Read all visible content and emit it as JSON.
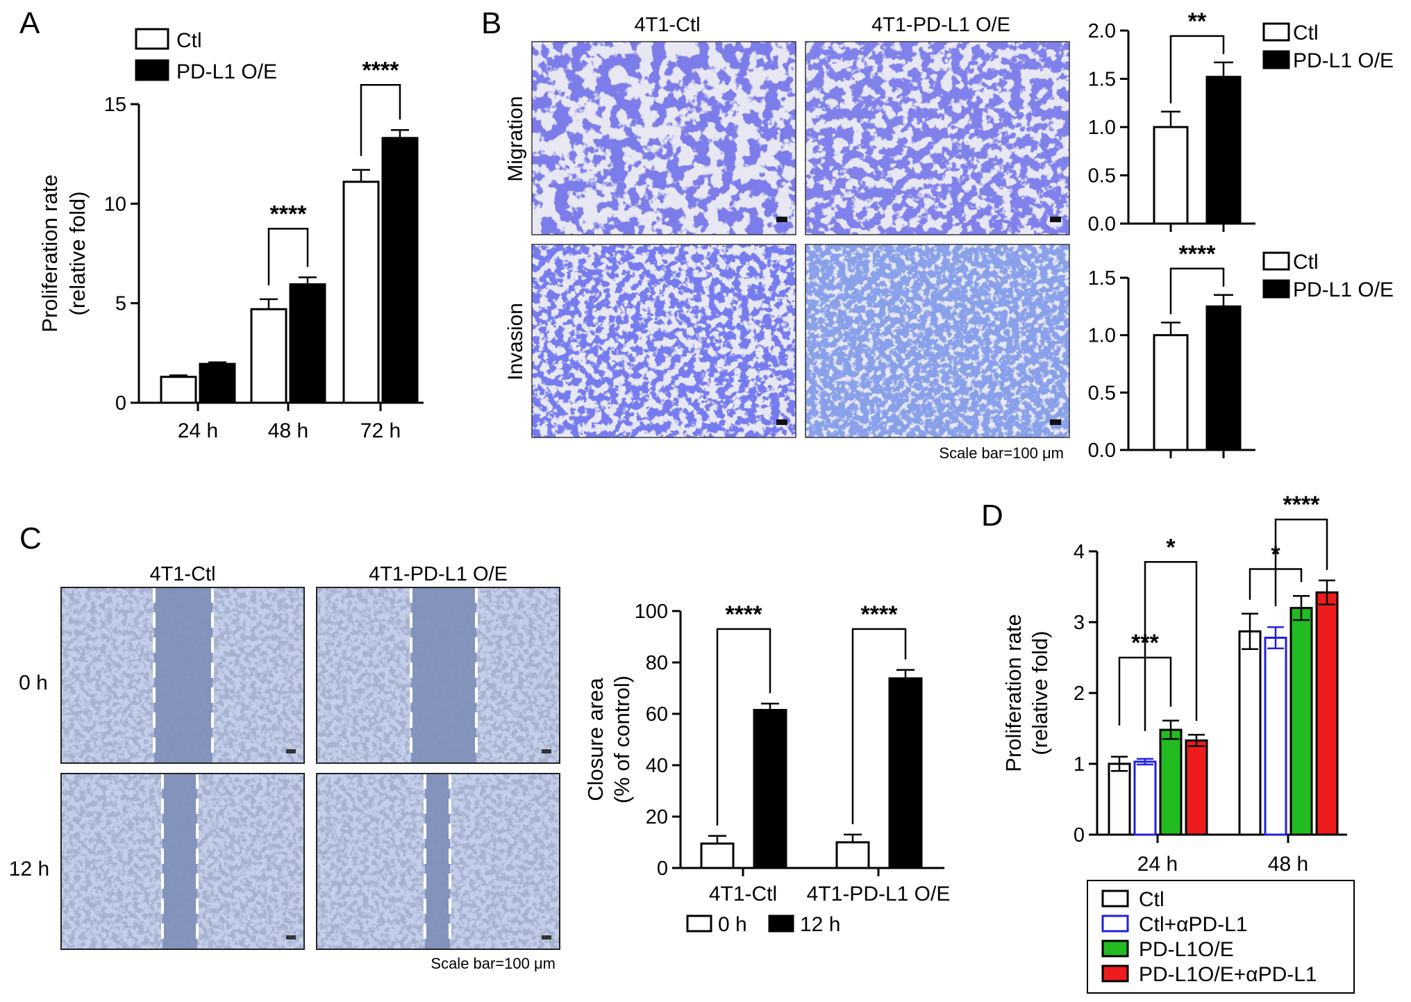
{
  "panels": {
    "A": "A",
    "B": "B",
    "C": "C",
    "D": "D"
  },
  "colors": {
    "ctl": "#ffffff",
    "pdl1": "#000000",
    "ctl_anti": "#2020e0",
    "pdl1_oe": "#22bb22",
    "pdl1_oe_anti": "#ee1c1c",
    "stain": "#3a3ad0",
    "scratch": "#7f8fb8"
  },
  "panelB": {
    "col_labels": [
      "4T1-Ctl",
      "4T1-PD-L1 O/E"
    ],
    "row_labels": [
      "Migration",
      "Invasion"
    ],
    "scale_bar": "Scale bar=100 μm"
  },
  "panelC": {
    "col_labels": [
      "4T1-Ctl",
      "4T1-PD-L1 O/E"
    ],
    "row_labels": [
      "0 h",
      "12 h"
    ],
    "scale_bar": "Scale bar=100 μm"
  },
  "chart_data": [
    {
      "id": "A",
      "type": "bar",
      "categories": [
        "24 h",
        "48 h",
        "72 h"
      ],
      "series": [
        {
          "name": "Ctl",
          "values": [
            1.3,
            4.7,
            11.1
          ],
          "errors": [
            0.08,
            0.5,
            0.6
          ]
        },
        {
          "name": "PD-L1 O/E",
          "values": [
            1.95,
            5.95,
            13.3
          ],
          "errors": [
            0.08,
            0.35,
            0.4
          ]
        }
      ],
      "ylabel": "Proliferation rate (relative fold)",
      "ylim": [
        0,
        15
      ],
      "yticks": [
        0,
        5,
        10,
        15
      ],
      "legend": "top-left",
      "significance": [
        "",
        "****",
        "****"
      ]
    },
    {
      "id": "B-migration",
      "type": "bar",
      "categories": [
        "Ctl",
        "PD-L1 O/E"
      ],
      "values": [
        1.0,
        1.52
      ],
      "errors": [
        0.16,
        0.15
      ],
      "ylim": [
        0,
        2.0
      ],
      "yticks": [
        "0.0",
        "0.5",
        "1.0",
        "1.5",
        "2.0"
      ],
      "legend": "right",
      "significance": "**"
    },
    {
      "id": "B-invasion",
      "type": "bar",
      "categories": [
        "Ctl",
        "PD-L1 O/E"
      ],
      "values": [
        1.0,
        1.25
      ],
      "errors": [
        0.11,
        0.1
      ],
      "ylim": [
        0,
        1.5
      ],
      "yticks": [
        "0.0",
        "0.5",
        "1.0",
        "1.5"
      ],
      "legend": "right",
      "significance": "****"
    },
    {
      "id": "C",
      "type": "bar",
      "categories": [
        "4T1-Ctl",
        "4T1-PD-L1 O/E"
      ],
      "series": [
        {
          "name": "0 h",
          "values": [
            9.5,
            10.0
          ],
          "errors": [
            3.0,
            3.0
          ]
        },
        {
          "name": "12 h",
          "values": [
            61.5,
            73.8
          ],
          "errors": [
            2.5,
            3.3
          ]
        }
      ],
      "ylabel": "Closure area (% of control)",
      "ylim": [
        0,
        100
      ],
      "yticks": [
        0,
        20,
        40,
        60,
        80,
        100
      ],
      "legend": "bottom",
      "significance": [
        "****",
        "****"
      ]
    },
    {
      "id": "D",
      "type": "bar",
      "categories": [
        "24 h",
        "48 h"
      ],
      "series": [
        {
          "name": "Ctl",
          "values": [
            1.0,
            2.87
          ],
          "errors": [
            0.1,
            0.25
          ]
        },
        {
          "name": "Ctl+αPD-L1",
          "values": [
            1.03,
            2.78
          ],
          "errors": [
            0.04,
            0.15
          ]
        },
        {
          "name": "PD-L1O/E",
          "values": [
            1.48,
            3.2
          ],
          "errors": [
            0.13,
            0.17
          ]
        },
        {
          "name": "PD-L1O/E+αPD-L1",
          "values": [
            1.33,
            3.42
          ],
          "errors": [
            0.08,
            0.17
          ]
        }
      ],
      "ylabel": "Proliferation rate (relative fold)",
      "ylim": [
        0,
        4
      ],
      "yticks": [
        0,
        1,
        2,
        3,
        4
      ],
      "legend": "bottom",
      "significance": [
        {
          "label": "***",
          "group": "24 h"
        },
        {
          "label": "*",
          "group": "24 h"
        },
        {
          "label": "*",
          "group": "48 h"
        },
        {
          "label": "****",
          "group": "48 h"
        }
      ]
    }
  ]
}
